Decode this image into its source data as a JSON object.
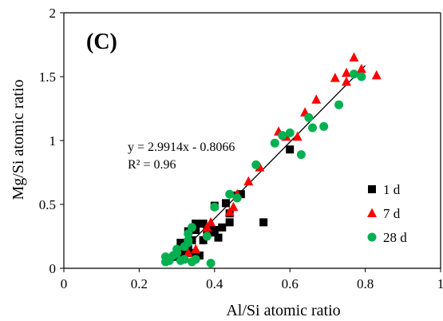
{
  "chart_data": {
    "type": "scatter",
    "panel_label": "(C)",
    "xlabel": "Al/Si atomic ratio",
    "ylabel": "Mg/Si atomic ratio",
    "xlim": [
      0,
      1
    ],
    "ylim": [
      0,
      2
    ],
    "xticks": [
      0,
      0.2,
      0.4,
      0.6,
      0.8,
      1
    ],
    "yticks": [
      0,
      0.5,
      1,
      1.5,
      2
    ],
    "xtick_labels": [
      "0",
      "0.2",
      "0.4",
      "0.6",
      "0.8",
      "1"
    ],
    "ytick_labels": [
      "0",
      "0.5",
      "1",
      "1.5",
      "2"
    ],
    "grid": false,
    "legend_position": "right",
    "annotations": {
      "equation": "y = 2.9914x - 0.8066",
      "r2": "R² = 0.96"
    },
    "fit": {
      "slope": 2.9914,
      "intercept": -0.8066,
      "x_range": [
        0.29,
        0.8
      ],
      "color": "#000000"
    },
    "series": [
      {
        "name": "1 d",
        "marker": "square",
        "color": "#000000",
        "points": [
          [
            0.3,
            0.09
          ],
          [
            0.31,
            0.12
          ],
          [
            0.31,
            0.2
          ],
          [
            0.32,
            0.1
          ],
          [
            0.33,
            0.15
          ],
          [
            0.33,
            0.29
          ],
          [
            0.34,
            0.12
          ],
          [
            0.34,
            0.22
          ],
          [
            0.35,
            0.3
          ],
          [
            0.35,
            0.35
          ],
          [
            0.36,
            0.1
          ],
          [
            0.36,
            0.35
          ],
          [
            0.37,
            0.22
          ],
          [
            0.37,
            0.35
          ],
          [
            0.38,
            0.3
          ],
          [
            0.39,
            0.28
          ],
          [
            0.4,
            0.49
          ],
          [
            0.4,
            0.3
          ],
          [
            0.41,
            0.24
          ],
          [
            0.42,
            0.32
          ],
          [
            0.43,
            0.51
          ],
          [
            0.44,
            0.36
          ],
          [
            0.44,
            0.43
          ],
          [
            0.46,
            0.57
          ],
          [
            0.47,
            0.58
          ],
          [
            0.53,
            0.36
          ],
          [
            0.6,
            0.93
          ]
        ]
      },
      {
        "name": "7 d",
        "marker": "triangle",
        "color": "#ff0000",
        "points": [
          [
            0.33,
            0.12
          ],
          [
            0.35,
            0.15
          ],
          [
            0.38,
            0.28
          ],
          [
            0.38,
            0.32
          ],
          [
            0.39,
            0.36
          ],
          [
            0.44,
            0.44
          ],
          [
            0.45,
            0.48
          ],
          [
            0.46,
            0.58
          ],
          [
            0.49,
            0.68
          ],
          [
            0.52,
            0.79
          ],
          [
            0.57,
            1.07
          ],
          [
            0.59,
            1.03
          ],
          [
            0.62,
            1.03
          ],
          [
            0.64,
            1.22
          ],
          [
            0.67,
            1.32
          ],
          [
            0.72,
            1.49
          ],
          [
            0.75,
            1.46
          ],
          [
            0.75,
            1.53
          ],
          [
            0.77,
            1.65
          ],
          [
            0.79,
            1.56
          ],
          [
            0.83,
            1.51
          ]
        ]
      },
      {
        "name": "28 d",
        "marker": "circle",
        "color": "#00b050",
        "points": [
          [
            0.27,
            0.05
          ],
          [
            0.27,
            0.09
          ],
          [
            0.28,
            0.06
          ],
          [
            0.29,
            0.1
          ],
          [
            0.3,
            0.12
          ],
          [
            0.3,
            0.15
          ],
          [
            0.31,
            0.06
          ],
          [
            0.32,
            0.07
          ],
          [
            0.32,
            0.17
          ],
          [
            0.33,
            0.2
          ],
          [
            0.33,
            0.22
          ],
          [
            0.33,
            0.27
          ],
          [
            0.34,
            0.32
          ],
          [
            0.34,
            0.05
          ],
          [
            0.35,
            0.07
          ],
          [
            0.38,
            0.25
          ],
          [
            0.39,
            0.04
          ],
          [
            0.4,
            0.48
          ],
          [
            0.44,
            0.58
          ],
          [
            0.46,
            0.55
          ],
          [
            0.51,
            0.81
          ],
          [
            0.56,
            0.98
          ],
          [
            0.58,
            1.04
          ],
          [
            0.6,
            1.06
          ],
          [
            0.63,
            0.89
          ],
          [
            0.65,
            1.18
          ],
          [
            0.66,
            1.1
          ],
          [
            0.69,
            1.11
          ],
          [
            0.73,
            1.28
          ],
          [
            0.77,
            1.52
          ],
          [
            0.79,
            1.5
          ]
        ]
      }
    ]
  }
}
